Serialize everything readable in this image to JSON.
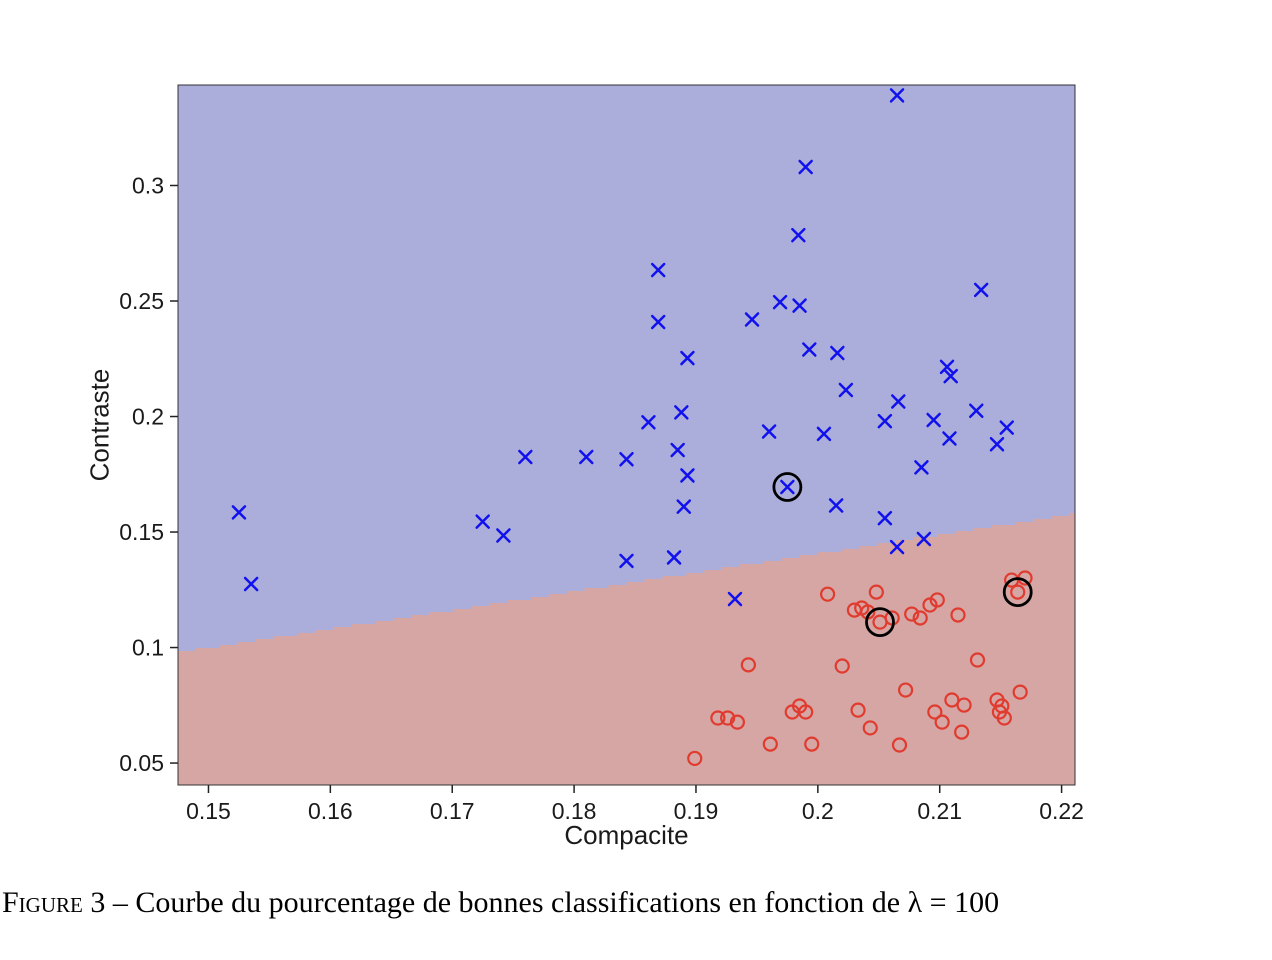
{
  "figure": {
    "caption_label": "Figure 3",
    "caption_text": " – Courbe du pourcentage de bonnes classifications en fonction de λ = 100"
  },
  "chart_data": {
    "type": "scatter",
    "title": "",
    "xlabel": "Compacite",
    "ylabel": "Contraste",
    "xlim": [
      0.1475,
      0.2211
    ],
    "ylim": [
      0.0405,
      0.3435
    ],
    "grid": false,
    "legend_position": "none",
    "x_ticks": [
      {
        "v": 0.15,
        "label": "0.15"
      },
      {
        "v": 0.16,
        "label": "0.16"
      },
      {
        "v": 0.17,
        "label": "0.17"
      },
      {
        "v": 0.18,
        "label": "0.18"
      },
      {
        "v": 0.19,
        "label": "0.19"
      },
      {
        "v": 0.2,
        "label": "0.2"
      },
      {
        "v": 0.21,
        "label": "0.21"
      },
      {
        "v": 0.22,
        "label": "0.22"
      }
    ],
    "y_ticks": [
      {
        "v": 0.05,
        "label": "0.05"
      },
      {
        "v": 0.1,
        "label": "0.1"
      },
      {
        "v": 0.15,
        "label": "0.15"
      },
      {
        "v": 0.2,
        "label": "0.2"
      },
      {
        "v": 0.25,
        "label": "0.25"
      },
      {
        "v": 0.3,
        "label": "0.3"
      }
    ],
    "regions": {
      "upper": {
        "name": "classe-bleue",
        "color": "#abaedb"
      },
      "lower": {
        "name": "classe-rouge",
        "color": "#d5a6a4"
      },
      "boundary": {
        "x": [
          0.1475,
          0.2211
        ],
        "y": [
          0.098,
          0.158
        ]
      }
    },
    "series": [
      {
        "name": "classe-1-bleu",
        "marker": "x",
        "color": "#1111ee",
        "points": [
          [
            0.2065,
            0.339
          ],
          [
            0.199,
            0.308
          ],
          [
            0.1984,
            0.2785
          ],
          [
            0.1869,
            0.2634
          ],
          [
            0.2134,
            0.2548
          ],
          [
            0.1969,
            0.2495
          ],
          [
            0.1985,
            0.248
          ],
          [
            0.1946,
            0.242
          ],
          [
            0.1869,
            0.2409
          ],
          [
            0.1993,
            0.229
          ],
          [
            0.2016,
            0.2275
          ],
          [
            0.1893,
            0.2253
          ],
          [
            0.2106,
            0.2215
          ],
          [
            0.2109,
            0.2175
          ],
          [
            0.2023,
            0.2115
          ],
          [
            0.2066,
            0.2065
          ],
          [
            0.1861,
            0.1975
          ],
          [
            0.1888,
            0.2018
          ],
          [
            0.2055,
            0.198
          ],
          [
            0.2095,
            0.1985
          ],
          [
            0.213,
            0.2025
          ],
          [
            0.2108,
            0.1905
          ],
          [
            0.2155,
            0.1952
          ],
          [
            0.2147,
            0.188
          ],
          [
            0.196,
            0.1935
          ],
          [
            0.2005,
            0.1925
          ],
          [
            0.2085,
            0.178
          ],
          [
            0.176,
            0.1825
          ],
          [
            0.181,
            0.1825
          ],
          [
            0.1843,
            0.1815
          ],
          [
            0.1885,
            0.1855
          ],
          [
            0.189,
            0.161
          ],
          [
            0.1843,
            0.1375
          ],
          [
            0.1882,
            0.139
          ],
          [
            0.1725,
            0.1545
          ],
          [
            0.1742,
            0.1485
          ],
          [
            0.1525,
            0.1585
          ],
          [
            0.1535,
            0.1275
          ],
          [
            0.1975,
            0.1695
          ],
          [
            0.2015,
            0.1615
          ],
          [
            0.2055,
            0.156
          ],
          [
            0.2065,
            0.1435
          ],
          [
            0.2087,
            0.147
          ],
          [
            0.1932,
            0.121
          ],
          [
            0.1893,
            0.1745
          ]
        ]
      },
      {
        "name": "classe-2-rouge",
        "marker": "o",
        "color": "#e13a2e",
        "points": [
          [
            0.1899,
            0.052
          ],
          [
            0.1918,
            0.0695
          ],
          [
            0.1926,
            0.0695
          ],
          [
            0.1934,
            0.0677
          ],
          [
            0.1943,
            0.0925
          ],
          [
            0.1961,
            0.0582
          ],
          [
            0.1979,
            0.0721
          ],
          [
            0.1985,
            0.0747
          ],
          [
            0.199,
            0.0721
          ],
          [
            0.1995,
            0.0582
          ],
          [
            0.2008,
            0.1231
          ],
          [
            0.202,
            0.092
          ],
          [
            0.203,
            0.1162
          ],
          [
            0.2036,
            0.1171
          ],
          [
            0.2041,
            0.1154
          ],
          [
            0.2033,
            0.0729
          ],
          [
            0.2043,
            0.0652
          ],
          [
            0.2048,
            0.124
          ],
          [
            0.2051,
            0.111
          ],
          [
            0.2061,
            0.1128
          ],
          [
            0.2067,
            0.0578
          ],
          [
            0.2072,
            0.0816
          ],
          [
            0.2077,
            0.1145
          ],
          [
            0.2084,
            0.1128
          ],
          [
            0.2092,
            0.1184
          ],
          [
            0.2098,
            0.1206
          ],
          [
            0.2096,
            0.0721
          ],
          [
            0.2102,
            0.0677
          ],
          [
            0.211,
            0.0773
          ],
          [
            0.2115,
            0.1141
          ],
          [
            0.2118,
            0.0634
          ],
          [
            0.212,
            0.0751
          ],
          [
            0.2131,
            0.0946
          ],
          [
            0.2147,
            0.0773
          ],
          [
            0.2151,
            0.0747
          ],
          [
            0.2149,
            0.0721
          ],
          [
            0.2153,
            0.0695
          ],
          [
            0.2166,
            0.0807
          ],
          [
            0.2159,
            0.1292
          ],
          [
            0.2164,
            0.124
          ],
          [
            0.217,
            0.1301
          ]
        ]
      }
    ],
    "highlighted_points": {
      "name": "vecteurs-support",
      "color": "#000000",
      "points": [
        [
          0.1975,
          0.1695
        ],
        [
          0.2051,
          0.111
        ],
        [
          0.2164,
          0.124
        ]
      ]
    }
  }
}
